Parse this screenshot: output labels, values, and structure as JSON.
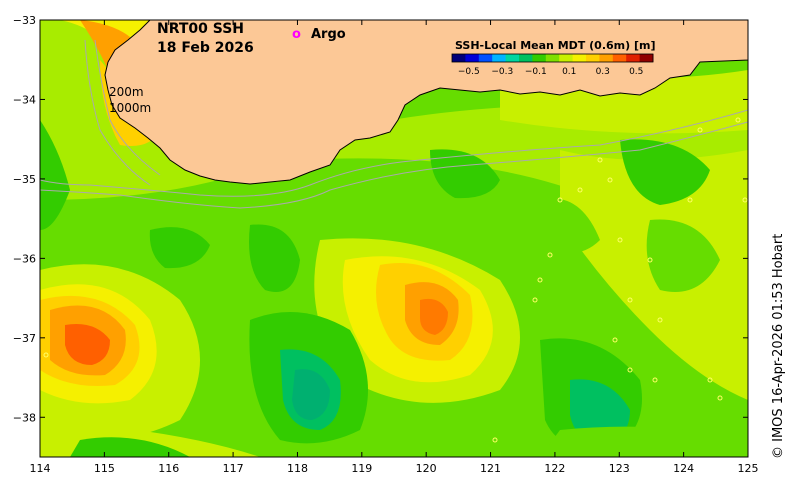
{
  "map": {
    "title_line1": "NRT00 SSH",
    "title_line2": "18 Feb 2026",
    "argo_marker": "o",
    "argo_label": "Argo",
    "credit": "© IMOS 16-Apr-2026 01:53 Hobart",
    "contour_labels": [
      "200m",
      "1000m"
    ],
    "lon_ticks": [
      "114",
      "115",
      "116",
      "117",
      "118",
      "119",
      "120",
      "121",
      "122",
      "123",
      "124",
      "125"
    ],
    "lat_ticks": [
      "−33",
      "−34",
      "−35",
      "−36",
      "−37",
      "−38"
    ],
    "lon_range": [
      114,
      125
    ],
    "lat_range": [
      -38.5,
      -33
    ],
    "legend": {
      "title": "SSH-Local Mean MDT (0.6m) [m]",
      "ticks": [
        "−0.5",
        "−0.3",
        "−0.1",
        "0.1",
        "0.3",
        "0.5"
      ],
      "range": [
        -0.6,
        0.6
      ],
      "colors": [
        "#00007a",
        "#0000d8",
        "#0050ff",
        "#00b4ff",
        "#00d6a0",
        "#00c060",
        "#33cc00",
        "#7fe000",
        "#c8f000",
        "#f5f000",
        "#ffd000",
        "#ffa000",
        "#ff6000",
        "#e02000",
        "#900000"
      ]
    },
    "colors": {
      "land": "#fcc896",
      "coast": "#000000",
      "bathymetry": "#aaaaaa",
      "argo": "#ff00ff"
    }
  }
}
